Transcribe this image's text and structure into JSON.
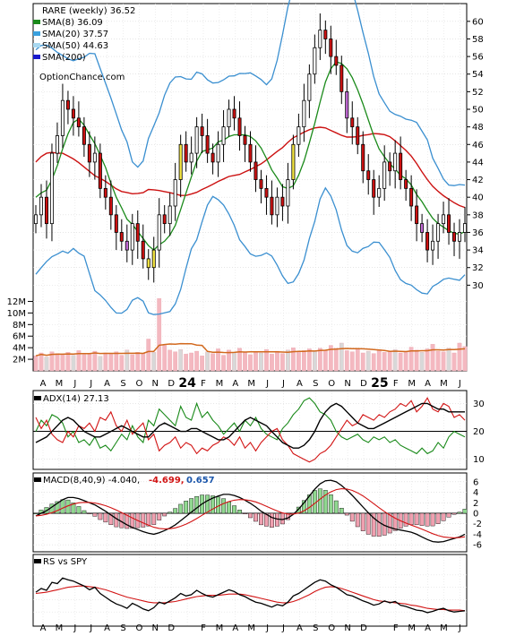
{
  "chart_data": [
    {
      "type": "candlestick",
      "title": "RARE (weekly) 36.52",
      "watermark": "OptionChance.com",
      "ylim": [
        28,
        61
      ],
      "y_ticks": [
        "30",
        "32",
        "34",
        "36",
        "38",
        "40",
        "42",
        "44",
        "46",
        "48",
        "50",
        "52",
        "54",
        "56",
        "58",
        "60"
      ],
      "legend": [
        {
          "label": "SMA(8) 36.09",
          "color": "#1a8a1a"
        },
        {
          "label": "SMA(20) 37.57",
          "color": "#3aa0dd"
        },
        {
          "label": "SMA(50) 44.63",
          "color": "#a8d8f0"
        },
        {
          "label": "SMA(200)",
          "color": "#1a1acc"
        }
      ],
      "series": [
        {
          "name": "close",
          "values": [
            38,
            40,
            37,
            45,
            47,
            51,
            50,
            49,
            48,
            46,
            44,
            45,
            41,
            40,
            38,
            36,
            35,
            34,
            37,
            35,
            33,
            32,
            34,
            38,
            37,
            39,
            42,
            46,
            44,
            45,
            48,
            47,
            45,
            44,
            46,
            48,
            50,
            49,
            47,
            46,
            44,
            42,
            41,
            40,
            38,
            40,
            39,
            42,
            46,
            48,
            51,
            54,
            57,
            59,
            58,
            56,
            55,
            52,
            49,
            48,
            46,
            43,
            42,
            40,
            41,
            44,
            43,
            45,
            42,
            41,
            39,
            37,
            36,
            34,
            35,
            37,
            38,
            36,
            35,
            36,
            37
          ]
        }
      ],
      "sma8": [
        40,
        40.5,
        40.8,
        42,
        43.6,
        45.5,
        47.2,
        48.5,
        48.9,
        48.2,
        47.1,
        46.1,
        44.8,
        43.4,
        41.6,
        40,
        38.8,
        37.5,
        36.9,
        36.1,
        35.3,
        34.5,
        34,
        34.6,
        35,
        35.7,
        36.8,
        38.6,
        40.5,
        42.3,
        44.1,
        45.2,
        45.4,
        45.6,
        46.3,
        46.5,
        46.9,
        47.1,
        47.1,
        47.1,
        46.9,
        46.4,
        45.6,
        44.4,
        43.1,
        42.2,
        41.2,
        41,
        41.3,
        42.5,
        44.1,
        46.2,
        48.4,
        50.8,
        53.1,
        54.6,
        55.4,
        55.2,
        54.6,
        53.6,
        52.2,
        50.6,
        48.8,
        47,
        45.5,
        44.6,
        43.8,
        43.2,
        42.5,
        42.1,
        41.4,
        40.3,
        39.5,
        38.5,
        37.6,
        37,
        36.6,
        36.2,
        35.9,
        35.8,
        36.1
      ]
    },
    {
      "type": "bar",
      "title": "Volume",
      "y_ticks": [
        "12M",
        "10M",
        "8M",
        "6M",
        "4M",
        "2M"
      ],
      "ylim": [
        0,
        13
      ],
      "values": [
        2.6,
        3.1,
        2.4,
        3.3,
        3,
        2.9,
        3.2,
        2.7,
        3.5,
        2.8,
        3,
        3.4,
        2.5,
        3.1,
        2.9,
        3.3,
        2.7,
        3.6,
        2.8,
        3.2,
        3,
        5.5,
        3.2,
        12.5,
        4.4,
        3.6,
        3.3,
        3.7,
        2.9,
        3.1,
        3.4,
        2.6,
        3.3,
        3,
        3.8,
        2.7,
        3.6,
        3.2,
        3.9,
        3.2,
        2.8,
        3.3,
        3.1,
        3.7,
        2.9,
        3.4,
        3,
        3.6,
        4,
        3.2,
        3.5,
        3.8,
        3.4,
        3.9,
        3.6,
        4.4,
        3.9,
        4.8,
        3.5,
        3.3,
        3.8,
        3.1,
        3.4,
        3,
        3.7,
        3.2,
        3.4,
        3.7,
        3.1,
        3.3,
        4.1,
        3.6,
        3.2,
        3.8,
        4.6,
        3.4,
        3.3,
        3.9,
        3.1,
        4.8,
        4.2
      ]
    },
    {
      "type": "line",
      "title": "ADX(14) 27.13",
      "y_ticks": [
        "30",
        "20",
        "10"
      ],
      "ylim": [
        7,
        34
      ],
      "series": [
        {
          "name": "ADX",
          "values": [
            16,
            17,
            18,
            20,
            22,
            24,
            25,
            24,
            22,
            20,
            19,
            18,
            18,
            19,
            20,
            21,
            22,
            21,
            20,
            19,
            18,
            18,
            20,
            22,
            23,
            22,
            21,
            20,
            20,
            21,
            21,
            20,
            19,
            18,
            17,
            17,
            18,
            20,
            22,
            24,
            25,
            24,
            23,
            22,
            20,
            18,
            16,
            15,
            14,
            14,
            15,
            17,
            20,
            24,
            27,
            29,
            30,
            29,
            27,
            25,
            23,
            22,
            21,
            21,
            22,
            23,
            24,
            25,
            26,
            27,
            28,
            29,
            30,
            30,
            29,
            28,
            28,
            27,
            27,
            27,
            27
          ]
        },
        {
          "name": "+DI",
          "values": [
            20,
            24,
            22,
            26,
            25,
            23,
            18,
            20,
            16,
            17,
            15,
            18,
            14,
            15,
            13,
            16,
            19,
            17,
            22,
            18,
            16,
            24,
            22,
            28,
            26,
            24,
            22,
            29,
            25,
            24,
            30,
            25,
            27,
            24,
            22,
            19,
            21,
            23,
            20,
            24,
            22,
            25,
            21,
            19,
            18,
            17,
            21,
            23,
            26,
            28,
            31,
            32,
            30,
            27,
            26,
            24,
            20,
            18,
            17,
            18,
            19,
            17,
            16,
            18,
            17,
            18,
            16,
            17,
            15,
            14,
            13,
            12,
            14,
            12,
            13,
            16,
            14,
            18,
            20,
            19,
            18
          ]
        },
        {
          "name": "-DI",
          "values": [
            25,
            21,
            24,
            19,
            17,
            16,
            20,
            18,
            22,
            21,
            23,
            20,
            25,
            24,
            27,
            22,
            20,
            24,
            19,
            21,
            23,
            17,
            19,
            13,
            15,
            16,
            18,
            14,
            16,
            15,
            12,
            14,
            13,
            15,
            16,
            18,
            17,
            15,
            18,
            14,
            16,
            13,
            16,
            18,
            20,
            21,
            17,
            15,
            12,
            11,
            10,
            9,
            10,
            12,
            13,
            15,
            18,
            21,
            24,
            22,
            23,
            26,
            25,
            24,
            26,
            25,
            27,
            28,
            30,
            29,
            31,
            27,
            29,
            32,
            28,
            27,
            30,
            29,
            25,
            26,
            24
          ]
        }
      ]
    },
    {
      "type": "bar",
      "title": "MACD(8,40,9) -4.040,",
      "macd_value": "-4.699,",
      "signal_value": "0.657",
      "y_ticks": [
        "6",
        "4",
        "2",
        "0",
        "-2",
        "-4",
        "-6"
      ],
      "ylim": [
        -7,
        7
      ],
      "macd": [
        -0.5,
        0,
        0.5,
        1.2,
        1.9,
        2.6,
        3,
        3,
        2.8,
        2.4,
        2,
        1.6,
        1,
        0.4,
        -0.3,
        -1,
        -1.6,
        -2.2,
        -2.7,
        -3.1,
        -3.5,
        -3.8,
        -4,
        -3.7,
        -3.3,
        -2.8,
        -2.2,
        -1.4,
        -0.6,
        0.2,
        1,
        1.8,
        2.4,
        2.9,
        3.3,
        3.6,
        3.6,
        3.4,
        3,
        2.5,
        1.9,
        1.2,
        0.4,
        -0.2,
        -0.8,
        -1.1,
        -1.2,
        -0.9,
        -0.2,
        0.8,
        2,
        3.3,
        4.6,
        5.6,
        6.2,
        6.3,
        6,
        5.3,
        4.4,
        3.4,
        2.3,
        1.2,
        0.1,
        -0.9,
        -1.7,
        -2.3,
        -2.7,
        -3,
        -3.2,
        -3.4,
        -3.6,
        -4,
        -4.5,
        -5,
        -5.4,
        -5.5,
        -5.4,
        -5.1,
        -4.8,
        -4.5,
        -4
      ]
    },
    {
      "type": "line",
      "title": "RS vs SPY",
      "series": [
        {
          "name": "RS",
          "values": [
            0.52,
            0.58,
            0.55,
            0.68,
            0.66,
            0.75,
            0.72,
            0.7,
            0.66,
            0.62,
            0.56,
            0.6,
            0.5,
            0.44,
            0.38,
            0.33,
            0.3,
            0.26,
            0.34,
            0.3,
            0.25,
            0.22,
            0.27,
            0.36,
            0.33,
            0.38,
            0.43,
            0.5,
            0.46,
            0.48,
            0.55,
            0.5,
            0.46,
            0.44,
            0.48,
            0.52,
            0.56,
            0.53,
            0.48,
            0.45,
            0.4,
            0.36,
            0.34,
            0.31,
            0.28,
            0.32,
            0.3,
            0.36,
            0.46,
            0.5,
            0.56,
            0.62,
            0.68,
            0.72,
            0.7,
            0.64,
            0.6,
            0.54,
            0.48,
            0.46,
            0.42,
            0.38,
            0.35,
            0.31,
            0.33,
            0.38,
            0.35,
            0.37,
            0.31,
            0.29,
            0.26,
            0.23,
            0.22,
            0.19,
            0.21,
            0.24,
            0.26,
            0.22,
            0.2,
            0.21,
            0.22
          ]
        },
        {
          "name": "RS average",
          "values": [
            0.5,
            0.51,
            0.52,
            0.54,
            0.56,
            0.58,
            0.6,
            0.61,
            0.62,
            0.62,
            0.61,
            0.6,
            0.58,
            0.56,
            0.53,
            0.5,
            0.47,
            0.44,
            0.42,
            0.4,
            0.38,
            0.36,
            0.35,
            0.35,
            0.35,
            0.36,
            0.37,
            0.39,
            0.41,
            0.43,
            0.45,
            0.46,
            0.47,
            0.47,
            0.47,
            0.48,
            0.49,
            0.49,
            0.49,
            0.48,
            0.46,
            0.44,
            0.42,
            0.4,
            0.38,
            0.36,
            0.35,
            0.35,
            0.37,
            0.4,
            0.44,
            0.48,
            0.53,
            0.57,
            0.6,
            0.61,
            0.6,
            0.58,
            0.55,
            0.52,
            0.49,
            0.46,
            0.43,
            0.4,
            0.38,
            0.37,
            0.36,
            0.35,
            0.34,
            0.33,
            0.31,
            0.3,
            0.28,
            0.26,
            0.25,
            0.24,
            0.24,
            0.23,
            0.23,
            0.23,
            0.22
          ]
        }
      ]
    }
  ],
  "x_axis": {
    "labels": [
      "A",
      "M",
      "J",
      "J",
      "A",
      "S",
      "O",
      "N",
      "D",
      "24",
      "F",
      "M",
      "A",
      "M",
      "J",
      "J",
      "A",
      "S",
      "O",
      "N",
      "D",
      "25",
      "F",
      "M",
      "A",
      "M",
      "J"
    ],
    "bold": [
      "24",
      "25"
    ]
  },
  "colors": {
    "sma8": "#1a8a1a",
    "sma20": "#3aa0dd",
    "sma50": "#a8d8f0",
    "sma200": "#1a1acc",
    "long_avg": "#cc1111",
    "volume": "#f4b8c0",
    "volume_avg": "#d2691e",
    "macd_negative": "#d21414",
    "signal_positive": "#1a55aa"
  }
}
